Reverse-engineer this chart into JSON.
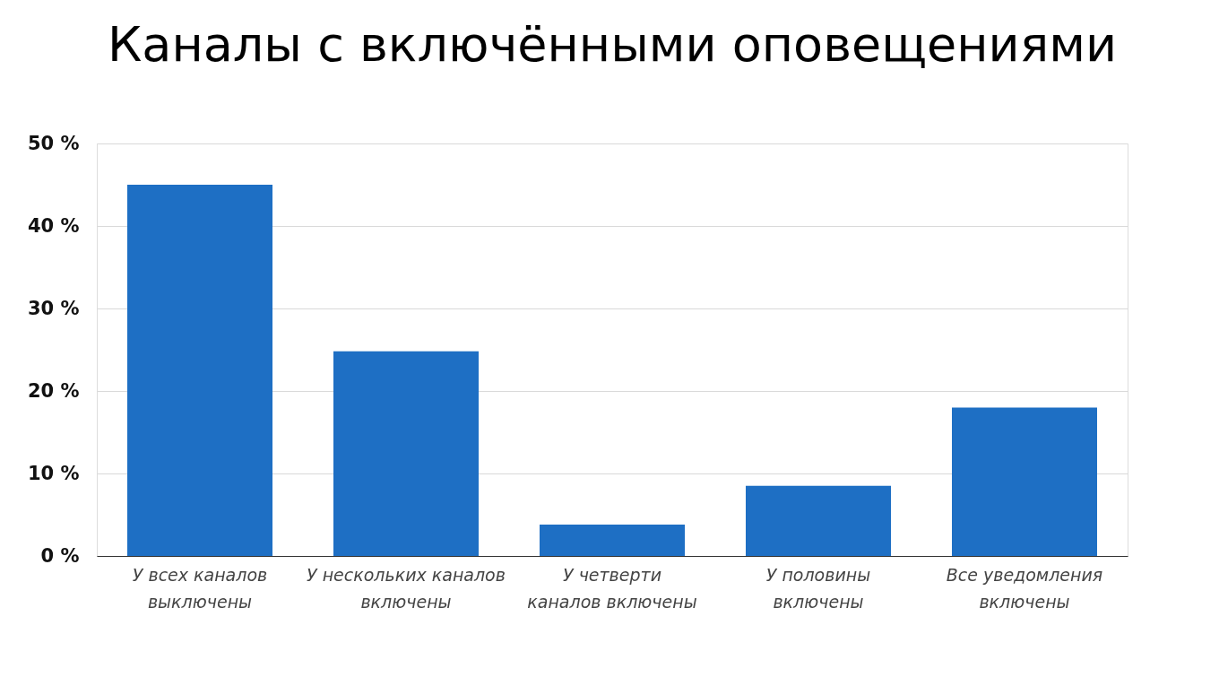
{
  "chart_data": {
    "type": "bar",
    "title": "Каналы с включёнными оповещениями",
    "categories": [
      "У всех каналов\nвыключены",
      "У нескольких каналов\nвключены",
      "У четверти\nканалов включены",
      "У половины\nвключены",
      "Все уведомления\nвключены"
    ],
    "values": [
      45,
      24.8,
      3.8,
      8.5,
      18
    ],
    "color": "#1e6fc4",
    "ylim": [
      0,
      50
    ],
    "yticks": [
      {
        "value": 0,
        "label": "0 %"
      },
      {
        "value": 10,
        "label": "10 %"
      },
      {
        "value": 20,
        "label": "20 %"
      },
      {
        "value": 30,
        "label": "30 %"
      },
      {
        "value": 40,
        "label": "40 %"
      },
      {
        "value": 50,
        "label": "50 %"
      }
    ],
    "grid": "y"
  }
}
